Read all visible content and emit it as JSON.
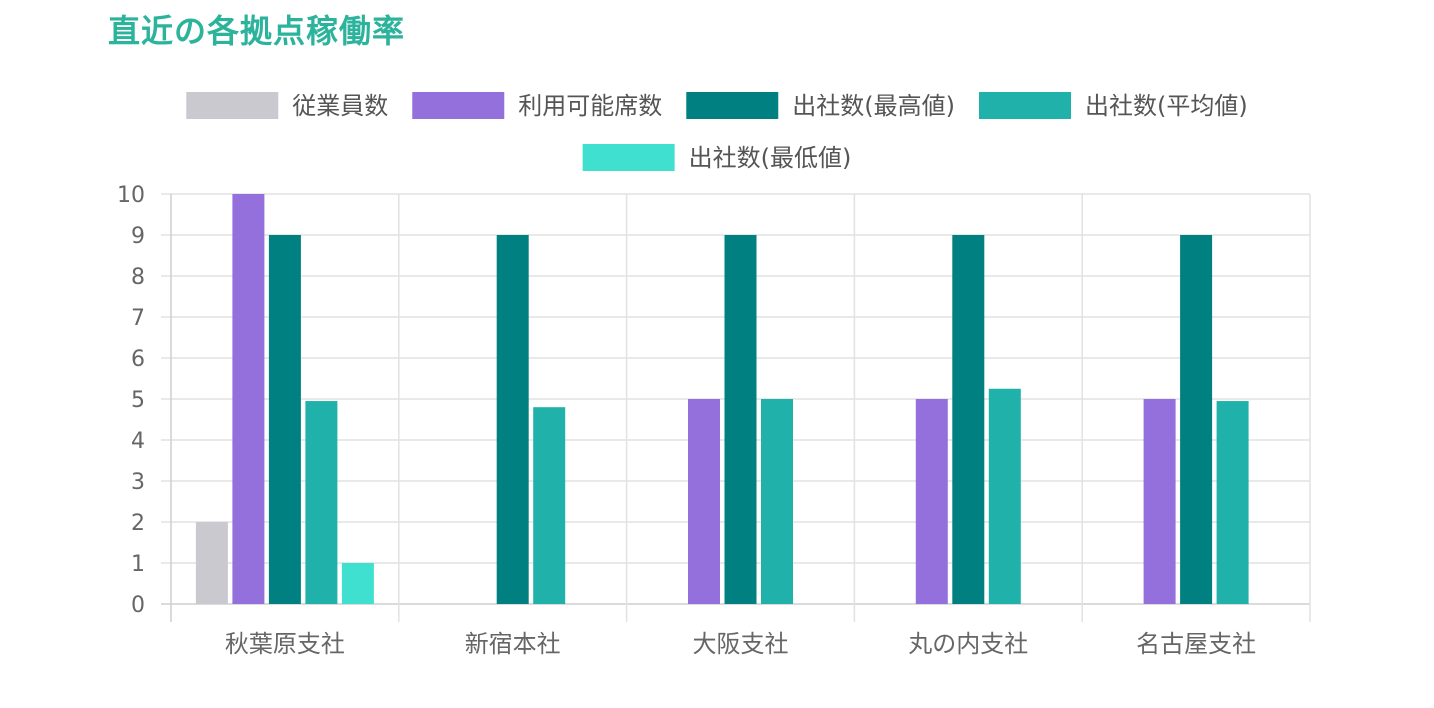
{
  "title": "直近の各拠点稼働率",
  "chart_data": {
    "type": "bar",
    "categories": [
      "秋葉原支社",
      "新宿本社",
      "大阪支社",
      "丸の内支社",
      "名古屋支社"
    ],
    "series": [
      {
        "name": "従業員数",
        "color": "#c9c9cf",
        "values": [
          2,
          0,
          0,
          0,
          0
        ]
      },
      {
        "name": "利用可能席数",
        "color": "#9370db",
        "values": [
          10,
          0,
          5,
          5,
          5
        ]
      },
      {
        "name": "出社数(最高値)",
        "color": "#008080",
        "values": [
          9,
          9,
          9,
          9,
          9
        ]
      },
      {
        "name": "出社数(平均値)",
        "color": "#20b2aa",
        "values": [
          4.95,
          4.8,
          5,
          5.25,
          4.95
        ]
      },
      {
        "name": "出社数(最低値)",
        "color": "#40e0d0",
        "values": [
          1,
          0,
          0,
          0,
          0
        ]
      }
    ],
    "yticks": [
      "0",
      "1",
      "2",
      "3",
      "4",
      "5",
      "6",
      "7",
      "8",
      "9",
      "10"
    ],
    "ylim": [
      0,
      10
    ],
    "legend": "top",
    "grid": true
  }
}
